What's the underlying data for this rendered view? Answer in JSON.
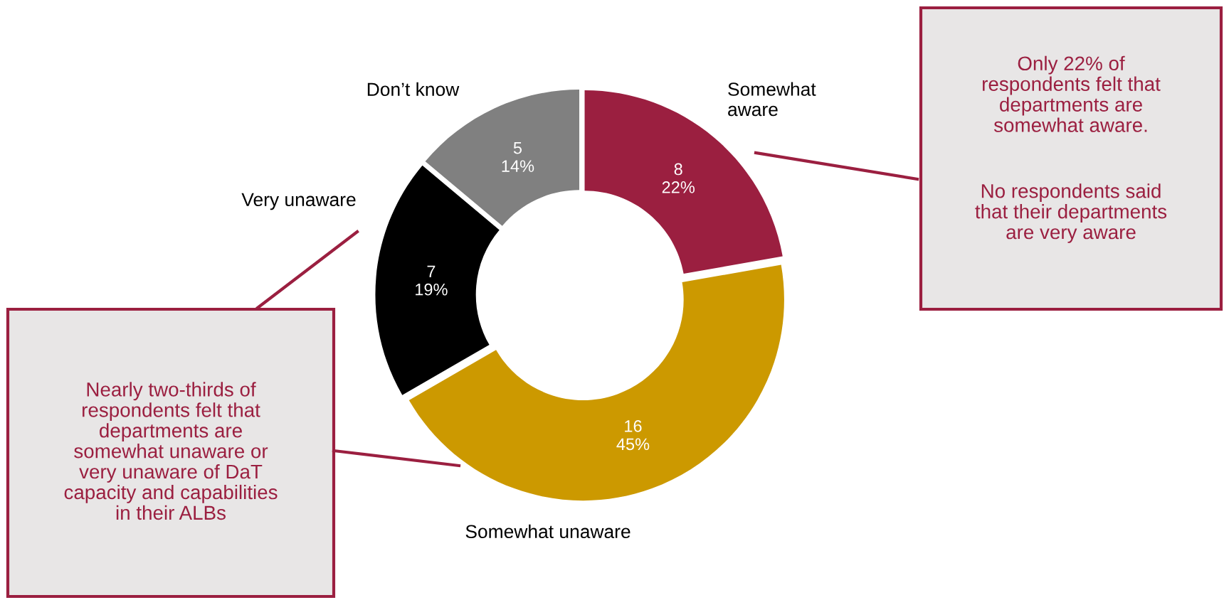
{
  "chart_data": {
    "type": "donut",
    "categories": [
      "Somewhat\naware",
      "Somewhat unaware",
      "Very unaware",
      "Don’t know"
    ],
    "values": [
      8,
      16,
      7,
      5
    ],
    "colors": [
      "#9b1f40",
      "#cc9900",
      "#000000",
      "#808080"
    ],
    "value_labels": [
      "8\n22%",
      "16\n45%",
      "7\n19%",
      "5\n14%"
    ],
    "legend": false,
    "annotations": [
      "Only 22% of\nrespondents felt that\ndepartments are\nsomewhat aware.",
      "No respondents said\nthat their departments\nare very aware",
      "Nearly two-thirds of\nrespondents felt that\ndepartments are\nsomewhat unaware or\nvery unaware of DaT\ncapacity and capabilities\nin their ALBs"
    ]
  }
}
